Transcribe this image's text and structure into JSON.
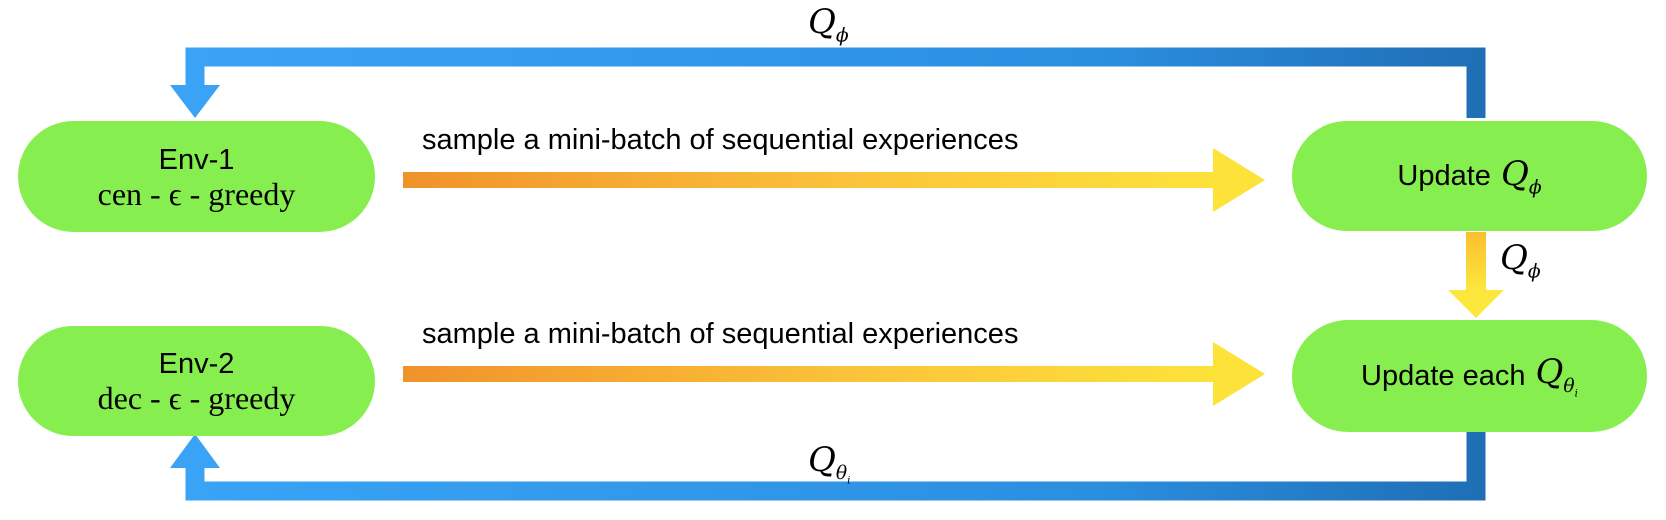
{
  "nodes": {
    "env1": {
      "title": "Env-1",
      "sub": "cen - ϵ - greedy"
    },
    "env2": {
      "title": "Env-2",
      "sub": "dec - ϵ - greedy"
    },
    "update_phi": {
      "prefix": "Update",
      "symbol": "Q",
      "subscript": "ϕ"
    },
    "update_theta": {
      "prefix": "Update each",
      "symbol": "Q",
      "subscript": "θ",
      "subsub": "i"
    }
  },
  "arrows": {
    "sample_top": "sample a mini-batch of sequential experiences",
    "sample_bottom": "sample a mini-batch of sequential experiences"
  },
  "loop_labels": {
    "top": {
      "symbol": "Q",
      "subscript": "ϕ"
    },
    "middle": {
      "symbol": "Q",
      "subscript": "ϕ"
    },
    "bottom": {
      "symbol": "Q",
      "subscript": "θ",
      "subsub": "i"
    }
  },
  "colors": {
    "node_fill": "#86ee4f",
    "loop_light": "#3aa3f5",
    "loop_dark": "#1f6fb6",
    "sample_start": "#f0922a",
    "sample_end": "#fde23a"
  }
}
